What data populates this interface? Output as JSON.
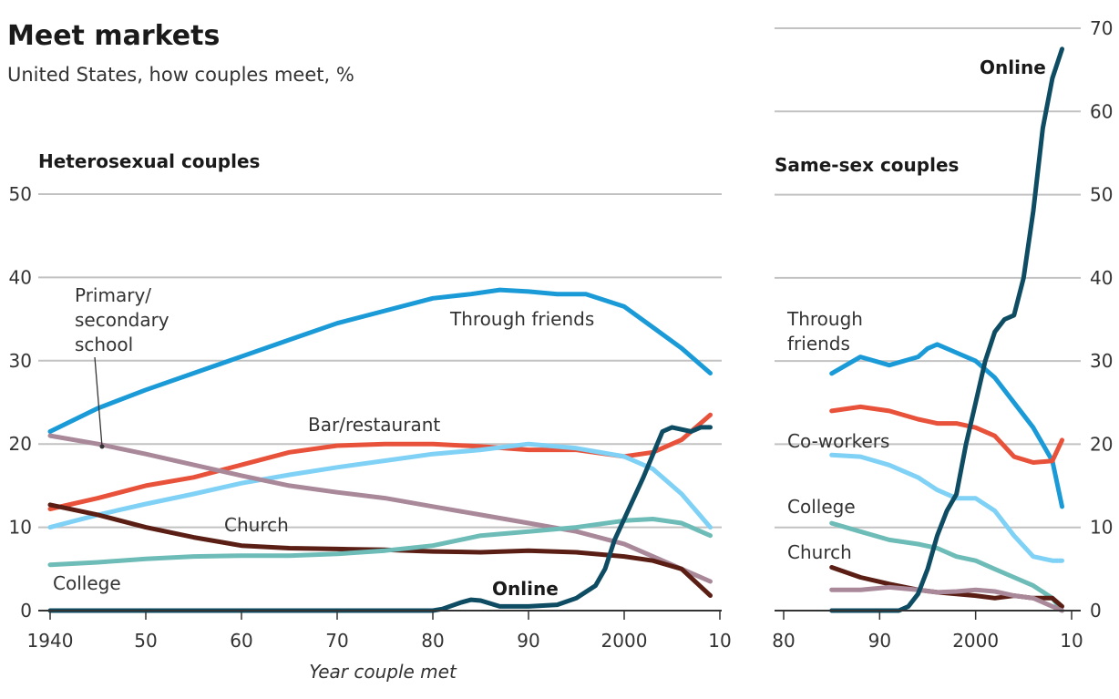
{
  "header": {
    "title": "Meet markets",
    "subtitle": "United States, how couples meet, %"
  },
  "chart_data": [
    {
      "type": "line",
      "title": "Heterosexual couples",
      "xlabel": "Year couple met",
      "ylabel": "",
      "xlim": [
        1940,
        2010
      ],
      "ylim": [
        0,
        50
      ],
      "x_ticks": [
        1940,
        1950,
        1960,
        1970,
        1980,
        1990,
        2000,
        2010
      ],
      "x_tick_labels": [
        "1940",
        "50",
        "60",
        "70",
        "80",
        "90",
        "2000",
        "10"
      ],
      "y_ticks": [
        0,
        10,
        20,
        30,
        40,
        50
      ],
      "y_tick_labels": [
        "0",
        "10",
        "20",
        "30",
        "40",
        "50"
      ],
      "series": [
        {
          "name": "Through friends",
          "color": "#1a9bd7",
          "x": [
            1940,
            1945,
            1950,
            1955,
            1960,
            1965,
            1970,
            1975,
            1980,
            1984,
            1987,
            1990,
            1993,
            1996,
            2000,
            2003,
            2006,
            2009
          ],
          "y": [
            21.5,
            24.3,
            26.5,
            28.5,
            30.5,
            32.5,
            34.5,
            36,
            37.5,
            38,
            38.5,
            38.3,
            38,
            38,
            36.5,
            34,
            31.5,
            28.5
          ]
        },
        {
          "name": "Bar/restaurant",
          "color": "#e8513a",
          "x": [
            1940,
            1945,
            1950,
            1955,
            1960,
            1965,
            1970,
            1975,
            1980,
            1985,
            1990,
            1995,
            2000,
            2003,
            2006,
            2009
          ],
          "y": [
            12.2,
            13.5,
            15,
            16,
            17.5,
            19,
            19.8,
            20,
            20,
            19.7,
            19.3,
            19.3,
            18.5,
            19,
            20.5,
            23.5
          ]
        },
        {
          "name": "Co-workers",
          "color": "#7fd1f5",
          "x": [
            1940,
            1945,
            1950,
            1955,
            1960,
            1965,
            1970,
            1975,
            1980,
            1985,
            1990,
            1995,
            2000,
            2003,
            2006,
            2009
          ],
          "y": [
            10,
            11.5,
            12.8,
            14,
            15.3,
            16.3,
            17.2,
            18,
            18.8,
            19.3,
            20,
            19.5,
            18.5,
            17,
            14,
            10
          ]
        },
        {
          "name": "Primary/ secondary school",
          "color": "#a88899",
          "x": [
            1940,
            1945,
            1950,
            1955,
            1960,
            1965,
            1970,
            1975,
            1980,
            1985,
            1990,
            1995,
            2000,
            2003,
            2006,
            2009
          ],
          "y": [
            21,
            20,
            18.8,
            17.5,
            16.2,
            15,
            14.2,
            13.5,
            12.5,
            11.5,
            10.5,
            9.5,
            8,
            6.5,
            5,
            3.5
          ]
        },
        {
          "name": "Church",
          "color": "#5a1e14",
          "x": [
            1940,
            1945,
            1950,
            1955,
            1960,
            1965,
            1970,
            1975,
            1980,
            1985,
            1990,
            1995,
            2000,
            2003,
            2006,
            2009
          ],
          "y": [
            12.7,
            11.5,
            10,
            8.8,
            7.8,
            7.5,
            7.4,
            7.3,
            7.1,
            7,
            7.2,
            7,
            6.5,
            6,
            5,
            1.8
          ]
        },
        {
          "name": "College",
          "color": "#6dbcb8",
          "x": [
            1940,
            1945,
            1950,
            1955,
            1960,
            1965,
            1970,
            1975,
            1980,
            1985,
            1990,
            1995,
            2000,
            2003,
            2006,
            2009
          ],
          "y": [
            5.5,
            5.8,
            6.2,
            6.5,
            6.6,
            6.6,
            6.8,
            7.2,
            7.8,
            9,
            9.5,
            10,
            10.8,
            11,
            10.5,
            9
          ]
        },
        {
          "name": "Online",
          "color": "#0e4c63",
          "x": [
            1940,
            1980,
            1981,
            1983,
            1984,
            1985,
            1987,
            1990,
            1993,
            1995,
            1997,
            1998,
            1999,
            2000,
            2002,
            2004,
            2005,
            2007,
            2008,
            2009
          ],
          "y": [
            0,
            0,
            0.2,
            1,
            1.3,
            1.2,
            0.5,
            0.5,
            0.7,
            1.5,
            3,
            5,
            8.5,
            11,
            16,
            21.5,
            22,
            21.5,
            22,
            22
          ]
        }
      ],
      "annotations": [
        "Primary/",
        "secondary",
        "school",
        "Through friends",
        "Bar/restaurant",
        "Church",
        "College",
        "Online"
      ]
    },
    {
      "type": "line",
      "title": "Same-sex couples",
      "xlabel": "",
      "ylabel": "",
      "xlim": [
        1980,
        2010
      ],
      "ylim": [
        0,
        70
      ],
      "x_ticks": [
        1980,
        1990,
        2000,
        2010
      ],
      "x_tick_labels": [
        "80",
        "90",
        "2000",
        "10"
      ],
      "y_ticks": [
        0,
        10,
        20,
        30,
        40,
        50,
        60,
        70
      ],
      "y_tick_labels": [
        "0",
        "10",
        "20",
        "30",
        "40",
        "50",
        "60",
        "70"
      ],
      "series": [
        {
          "name": "Through friends",
          "color": "#1a9bd7",
          "x": [
            1985,
            1988,
            1991,
            1994,
            1995,
            1996,
            1998,
            2000,
            2002,
            2004,
            2006,
            2008,
            2009
          ],
          "y": [
            28.5,
            30.5,
            29.5,
            30.5,
            31.5,
            32,
            31,
            30,
            28,
            25,
            22,
            18,
            12.5
          ]
        },
        {
          "name": "Co-workers",
          "color": "#e8513a",
          "x": [
            1985,
            1988,
            1991,
            1994,
            1996,
            1998,
            2000,
            2002,
            2004,
            2006,
            2008,
            2009
          ],
          "y": [
            24,
            24.5,
            24,
            23,
            22.5,
            22.5,
            22,
            21,
            18.5,
            17.8,
            18,
            20.5
          ]
        },
        {
          "name": "",
          "color": "#7fd1f5",
          "x": [
            1985,
            1988,
            1991,
            1994,
            1996,
            1998,
            2000,
            2002,
            2004,
            2006,
            2008,
            2009
          ],
          "y": [
            18.7,
            18.5,
            17.5,
            16,
            14.5,
            13.5,
            13.5,
            12,
            9,
            6.5,
            6,
            6
          ]
        },
        {
          "name": "College",
          "color": "#6dbcb8",
          "x": [
            1985,
            1988,
            1991,
            1994,
            1996,
            1998,
            2000,
            2002,
            2004,
            2006,
            2008,
            2009
          ],
          "y": [
            10.5,
            9.5,
            8.5,
            8,
            7.5,
            6.5,
            6,
            5,
            4,
            3,
            1.5,
            0
          ]
        },
        {
          "name": "Church",
          "color": "#5a1e14",
          "x": [
            1985,
            1988,
            1991,
            1994,
            1996,
            1998,
            2000,
            2002,
            2004,
            2006,
            2008,
            2009
          ],
          "y": [
            5.2,
            4,
            3.2,
            2.5,
            2.2,
            2,
            1.8,
            1.5,
            1.8,
            1.5,
            1.5,
            0.5
          ]
        },
        {
          "name": "",
          "color": "#a88899",
          "x": [
            1985,
            1988,
            1991,
            1994,
            1996,
            1998,
            2000,
            2002,
            2004,
            2006,
            2008,
            2009
          ],
          "y": [
            2.5,
            2.5,
            2.8,
            2.5,
            2.2,
            2.3,
            2.5,
            2.3,
            1.8,
            1.5,
            0.5,
            0
          ]
        },
        {
          "name": "Online",
          "color": "#0e4c63",
          "x": [
            1985,
            1992,
            1993,
            1994,
            1995,
            1996,
            1997,
            1998,
            1999,
            2000,
            2001,
            2002,
            2003,
            2004,
            2005,
            2006,
            2007,
            2008,
            2009
          ],
          "y": [
            0,
            0,
            0.5,
            2,
            5,
            9,
            12,
            14,
            20,
            25,
            30,
            33.5,
            35,
            35.5,
            40,
            48,
            58,
            64,
            67.5
          ]
        }
      ],
      "annotations": [
        "Through",
        "friends",
        "Co-workers",
        "College",
        "Church",
        "Online"
      ]
    }
  ]
}
